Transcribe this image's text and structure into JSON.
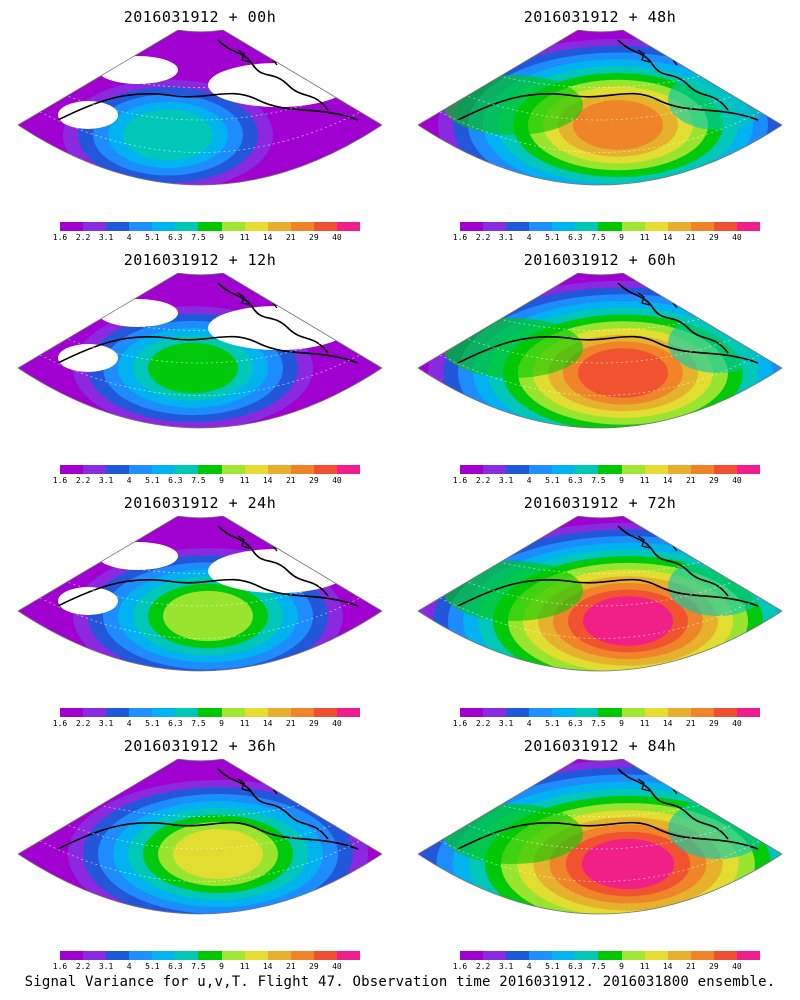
{
  "panels": [
    {
      "title": "2016031912 + 00h",
      "level": 0
    },
    {
      "title": "2016031912 + 48h",
      "level": 5
    },
    {
      "title": "2016031912 + 12h",
      "level": 1
    },
    {
      "title": "2016031912 + 60h",
      "level": 6
    },
    {
      "title": "2016031912 + 24h",
      "level": 2
    },
    {
      "title": "2016031912 + 72h",
      "level": 7
    },
    {
      "title": "2016031912 + 36h",
      "level": 3
    },
    {
      "title": "2016031912 + 84h",
      "level": 8
    }
  ],
  "colorbar": {
    "colors": [
      "#a000d0",
      "#8a2be2",
      "#1e5ad8",
      "#1e90ff",
      "#00b4f0",
      "#00c8b4",
      "#00c800",
      "#a0e632",
      "#e6dc32",
      "#e6af2d",
      "#f08228",
      "#f05032",
      "#f01e8c"
    ],
    "labels": [
      "1.6",
      "2.2",
      "3.1",
      "4",
      "5.1",
      "6.3",
      "7.5",
      "9",
      "11",
      "14",
      "21",
      "29",
      "40"
    ]
  },
  "footer": "Signal Variance for u,v,T. Flight 47. Observation time 2016031912. 2016031800 ensemble."
}
